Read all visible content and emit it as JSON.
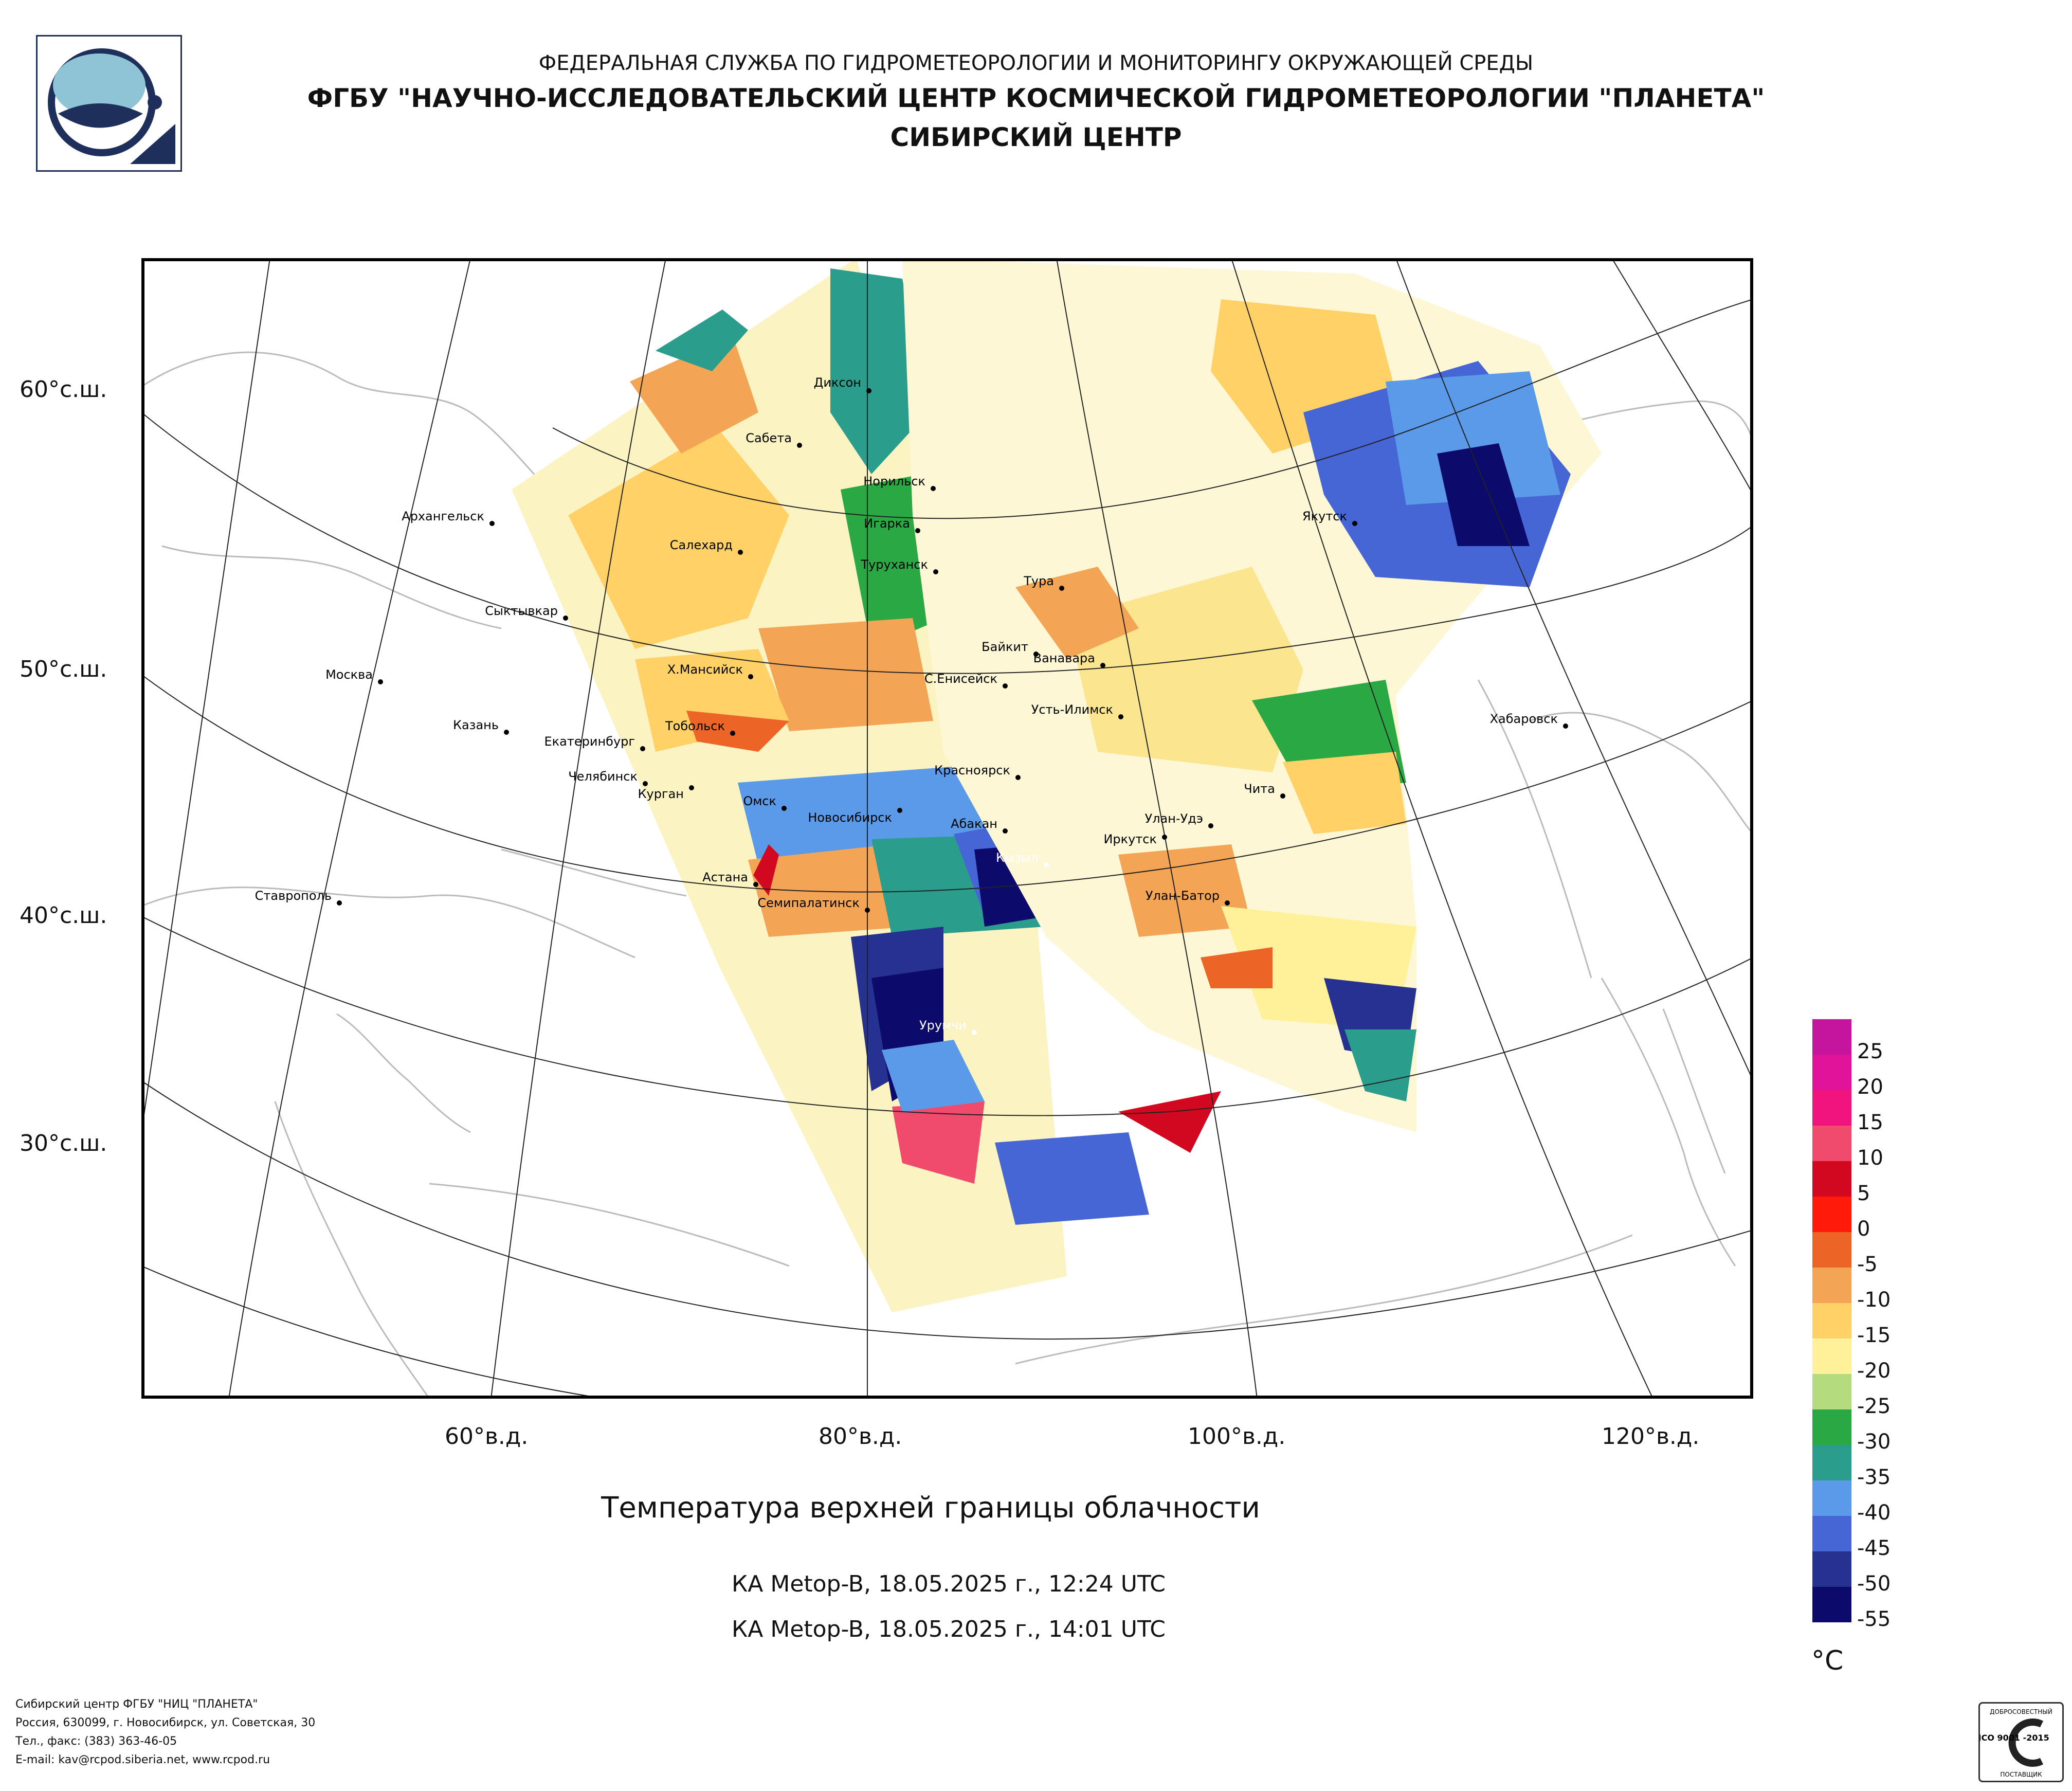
{
  "header": {
    "organization": "ФЕДЕРАЛЬНАЯ СЛУЖБА ПО ГИДРОМЕТЕОРОЛОГИИ И МОНИТОРИНГУ ОКРУЖАЮЩЕЙ СРЕДЫ",
    "institute": "ФГБУ \"НАУЧНО-ИССЛЕДОВАТЕЛЬСКИЙ ЦЕНТР КОСМИЧЕСКОЙ ГИДРОМЕТЕОРОЛОГИИ \"ПЛАНЕТА\"",
    "division": "СИБИРСКИЙ ЦЕНТР"
  },
  "map": {
    "latitude_labels": [
      "60°с.ш.",
      "50°с.ш.",
      "40°с.ш.",
      "30°с.ш."
    ],
    "longitude_labels": [
      "60°в.д.",
      "80°в.д.",
      "100°в.д.",
      "120°в.д."
    ],
    "cities": {
      "dikson": "Диксон",
      "sabeta": "Сабета",
      "norilsk": "Норильск",
      "igarka": "Игарка",
      "turukhansk": "Туруханск",
      "tura": "Тура",
      "yakutsk": "Якутск",
      "arkhangelsk": "Архангельск",
      "salekhard": "Салехард",
      "syktyvkar": "Сыктывкар",
      "moskva": "Москва",
      "khmansiysk": "Х.Мансийск",
      "baikit": "Байкит",
      "vanavara": "Ванавара",
      "syeniseysk": "С.Енисейск",
      "ustilimsk": "Усть-Илимск",
      "khabarovsk": "Хабаровск",
      "kazan": "Казань",
      "tobolsk": "Тобольск",
      "ekaterinburg": "Екатеринбург",
      "chelyabinsk": "Челябинск",
      "kurgan": "Курган",
      "krasnoyarsk": "Красноярск",
      "chita": "Чита",
      "omsk": "Омск",
      "novosibirsk": "Новосибирск",
      "abakan": "Абакан",
      "ulanude": "Улан-Удэ",
      "irkutsk": "Иркутск",
      "kyzyl": "Кызыл",
      "astana": "Астана",
      "stavropol": "Ставрополь",
      "semipalatinsk": "Семипалатинск",
      "ulanbator": "Улан-Батор",
      "urumqi": "Урумчи"
    }
  },
  "title": "Температура верхней границы облачности",
  "passes": [
    "КА Metop-B, 18.05.2025 г., 12:24 UTC",
    "КА Metop-B, 18.05.2025 г., 14:01 UTC"
  ],
  "legend": {
    "unit": "°C",
    "labels": [
      "25",
      "20",
      "15",
      "10",
      "5",
      "0",
      "-5",
      "-10",
      "-15",
      "-20",
      "-25",
      "-30",
      "-35",
      "-40",
      "-45",
      "-50",
      "-55"
    ],
    "colors": [
      "#c4159f",
      "#e0139a",
      "#f2147e",
      "#f04a6c",
      "#d1081f",
      "#ff1a0a",
      "#ec6526",
      "#f4a455",
      "#ffd166",
      "#fff09a",
      "#b4dc7c",
      "#2aa844",
      "#2a9d8c",
      "#5a9ae8",
      "#4566d4",
      "#26328f",
      "#0c0a6a"
    ]
  },
  "footer": {
    "line1": "Сибирский центр ФГБУ \"НИЦ \"ПЛАНЕТА\"",
    "line2": "Россия, 630099, г. Новосибирск, ул. Советская, 30",
    "line3": "Тел., факс: (383) 363-46-05",
    "line4": "E-mail: kav@rcpod.siberia.net, www.rcpod.ru"
  },
  "certificate": {
    "top": "ДОБРОСОВЕСТНЫЙ",
    "standard": "ИСО 9001 -2015",
    "bottom": "ПОСТАВЩИК"
  }
}
